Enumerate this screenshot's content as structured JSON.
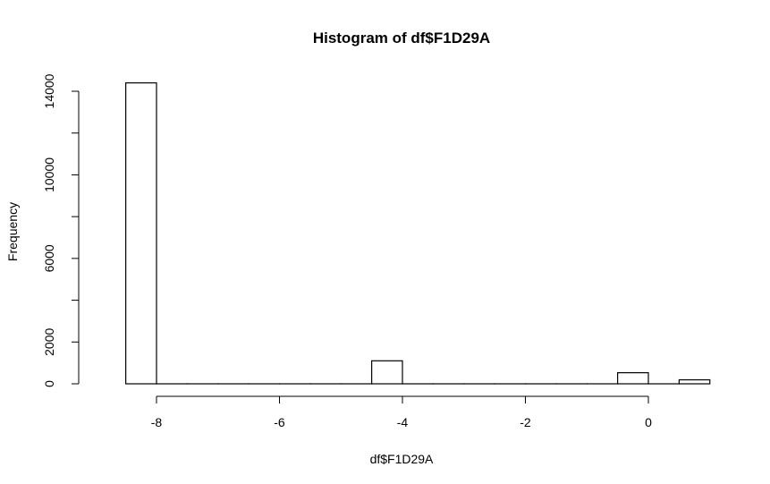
{
  "chart_data": {
    "type": "bar",
    "title": "Histogram of df$F1D29A",
    "xlabel": "df$F1D29A",
    "ylabel": "Frequency",
    "bins": [
      {
        "x0": -8.5,
        "x1": -8.0,
        "count": 14400
      },
      {
        "x0": -8.0,
        "x1": -7.5,
        "count": 0
      },
      {
        "x0": -7.5,
        "x1": -7.0,
        "count": 0
      },
      {
        "x0": -7.0,
        "x1": -6.5,
        "count": 0
      },
      {
        "x0": -6.5,
        "x1": -6.0,
        "count": 0
      },
      {
        "x0": -6.0,
        "x1": -5.5,
        "count": 0
      },
      {
        "x0": -5.5,
        "x1": -5.0,
        "count": 0
      },
      {
        "x0": -5.0,
        "x1": -4.5,
        "count": 0
      },
      {
        "x0": -4.5,
        "x1": -4.0,
        "count": 1100
      },
      {
        "x0": -4.0,
        "x1": -3.5,
        "count": 0
      },
      {
        "x0": -3.5,
        "x1": -3.0,
        "count": 0
      },
      {
        "x0": -3.0,
        "x1": -2.5,
        "count": 0
      },
      {
        "x0": -2.5,
        "x1": -2.0,
        "count": 0
      },
      {
        "x0": -2.0,
        "x1": -1.5,
        "count": 0
      },
      {
        "x0": -1.5,
        "x1": -1.0,
        "count": 0
      },
      {
        "x0": -1.0,
        "x1": -0.5,
        "count": 0
      },
      {
        "x0": -0.5,
        "x1": 0.0,
        "count": 530
      },
      {
        "x0": 0.0,
        "x1": 0.5,
        "count": 0
      },
      {
        "x0": 0.5,
        "x1": 1.0,
        "count": 190
      }
    ],
    "xlim": [
      -9,
      1
    ],
    "ylim": [
      0,
      14400
    ],
    "xticks": [
      -8,
      -6,
      -4,
      -2,
      0
    ],
    "xtick_labels": [
      "-8",
      "-6",
      "-4",
      "-2",
      "0"
    ],
    "yticks": [
      0,
      2000,
      6000,
      10000,
      14000
    ],
    "ytick_labels": [
      "0",
      "2000",
      "6000",
      "10000",
      "14000"
    ],
    "yminor_ticks": [
      4000,
      8000,
      12000
    ],
    "grid": false,
    "colors": {
      "bar_fill": "#ffffff",
      "bar_stroke": "#000000"
    }
  }
}
